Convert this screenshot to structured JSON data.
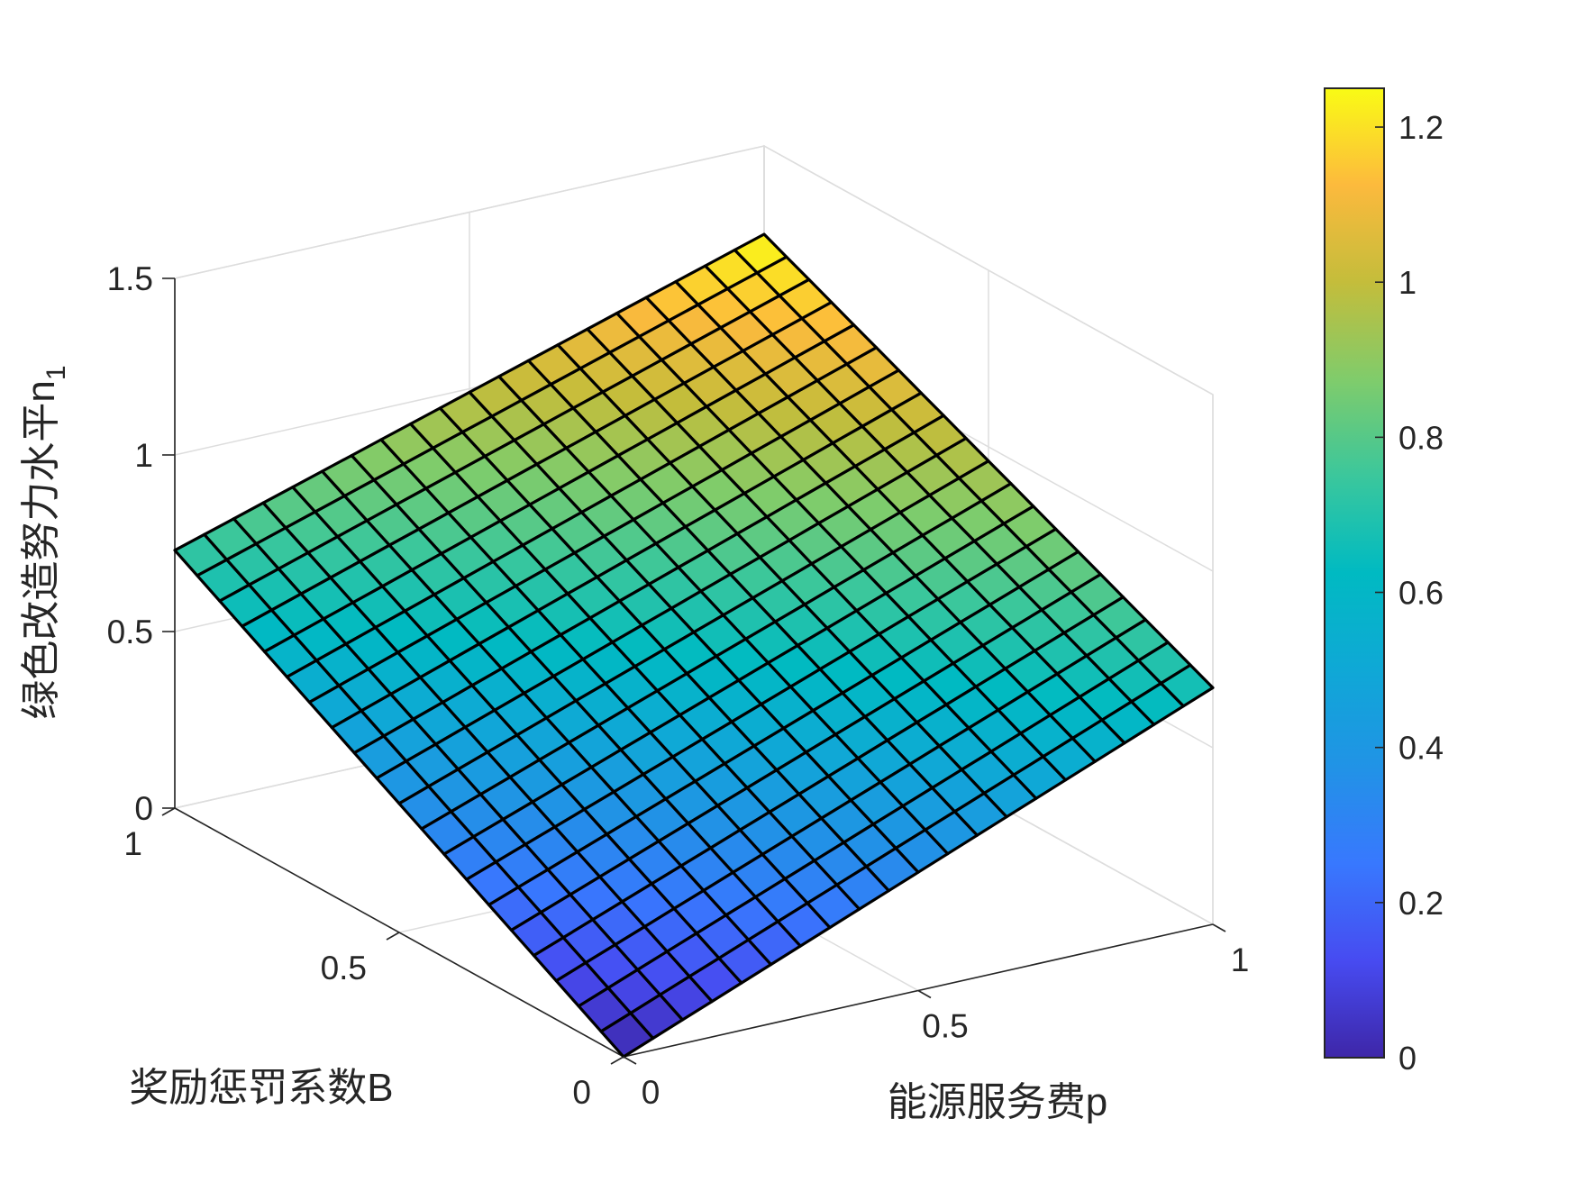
{
  "chart_data": {
    "type": "surface",
    "xlabel": "能源服务费p",
    "ylabel": "奖励惩罚系数B",
    "zlabel_main": "绿色改造努力水平n",
    "zlabel_sub": "1",
    "xlim": [
      0,
      1
    ],
    "ylim": [
      0,
      1
    ],
    "zlim": [
      0,
      1.5
    ],
    "x_ticks": [
      0,
      0.5,
      1
    ],
    "x_tick_labels": [
      "0",
      "0.5",
      "1"
    ],
    "y_ticks": [
      0,
      0.5,
      1
    ],
    "y_tick_labels": [
      "0",
      "0.5",
      "1"
    ],
    "z_ticks": [
      0,
      0.5,
      1,
      1.5
    ],
    "z_tick_labels": [
      "0",
      "0.5",
      "1",
      "1.5"
    ],
    "grid": "on",
    "colormap": "parula",
    "clim": [
      0,
      1.25
    ],
    "colorbar": {
      "location": "right",
      "ticks": [
        0,
        0.2,
        0.4,
        0.6,
        0.8,
        1,
        1.2
      ],
      "tick_labels": [
        "0",
        "0.2",
        "0.4",
        "0.6",
        "0.8",
        "1",
        "1.2"
      ]
    },
    "mesh_divisions": 20,
    "corner_values": [
      {
        "p": 0,
        "B": 0,
        "z": 0
      },
      {
        "p": 1,
        "B": 0,
        "z": 0.67
      },
      {
        "p": 0,
        "B": 1,
        "z": 0.73
      },
      {
        "p": 1,
        "B": 1,
        "z": 1.25
      }
    ],
    "edge_color": "#000000"
  }
}
